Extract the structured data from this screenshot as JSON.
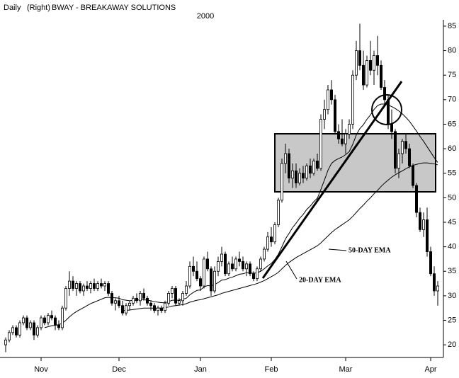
{
  "chart_data": {
    "type": "candlestick",
    "period": "Daily",
    "axis_side": "(Right)",
    "title": "BWAY - BREAKAWAY SOLUTIONS",
    "subtitle": "2000",
    "categories": [
      null,
      null,
      null,
      null,
      null,
      null,
      null,
      null,
      null,
      null,
      "Nov",
      null,
      null,
      null,
      null,
      null,
      null,
      null,
      null,
      null,
      null,
      null,
      null,
      null,
      null,
      null,
      null,
      null,
      null,
      null,
      null,
      null,
      "Dec",
      null,
      null,
      null,
      null,
      null,
      null,
      null,
      null,
      null,
      null,
      null,
      null,
      null,
      null,
      null,
      null,
      null,
      null,
      null,
      null,
      null,
      null,
      "Jan",
      null,
      null,
      null,
      null,
      null,
      null,
      null,
      null,
      null,
      null,
      null,
      null,
      null,
      null,
      null,
      null,
      null,
      null,
      null,
      "Feb",
      null,
      null,
      null,
      null,
      null,
      null,
      null,
      null,
      null,
      null,
      null,
      null,
      null,
      null,
      null,
      null,
      null,
      null,
      null,
      null,
      "Mar",
      null,
      null,
      null,
      null,
      null,
      null,
      null,
      null,
      null,
      null,
      null,
      null,
      null,
      null,
      null,
      null,
      null,
      null,
      null,
      null,
      null,
      null,
      null,
      "Apr",
      null,
      null
    ],
    "open": [
      20,
      21,
      22.5,
      23.5,
      22,
      24.5,
      25.5,
      23.5,
      24.5,
      22,
      23.5,
      25.5,
      24.5,
      26,
      25.5,
      24,
      23.5,
      27.5,
      31.5,
      33,
      31.5,
      32.5,
      31,
      32,
      31.5,
      32.5,
      31.5,
      32.5,
      32,
      32.5,
      30.5,
      28.5,
      29,
      28,
      26.5,
      28,
      28.5,
      29.5,
      29,
      30.5,
      29.5,
      28.5,
      28,
      27,
      27.5,
      27,
      28.5,
      30.5,
      31.5,
      28.5,
      29,
      30.5,
      32,
      36,
      35,
      33.5,
      32,
      37.5,
      35.5,
      31,
      35,
      37,
      38.5,
      34.5,
      36.5,
      35.5,
      37.5,
      37,
      35.5,
      36.5,
      34.5,
      33.5,
      35.5,
      37.5,
      39.5,
      42,
      41,
      44.5,
      49.5,
      57,
      59,
      54,
      55.5,
      53,
      55,
      54,
      56.5,
      55,
      57.5,
      56,
      66,
      68,
      72,
      70,
      63.5,
      62,
      61,
      63,
      65,
      75,
      80,
      77,
      73,
      78,
      76,
      79,
      77,
      72.5,
      70,
      65,
      63.5,
      56,
      59,
      61.5,
      60,
      56.5,
      52.5,
      47,
      43.5,
      45.5,
      39,
      34.5,
      31
    ],
    "high": [
      21.5,
      23,
      24,
      24,
      25,
      26,
      26,
      25,
      25,
      24,
      26,
      26,
      26.5,
      27,
      26,
      25,
      28,
      32,
      35,
      34,
      33,
      33,
      32.5,
      33,
      33,
      33.5,
      33,
      33.5,
      33,
      33,
      31,
      29.5,
      30,
      29,
      28.5,
      29,
      30,
      30.5,
      31,
      31.5,
      30,
      29,
      28.5,
      28,
      28,
      29,
      31,
      32,
      32,
      29.5,
      31,
      33,
      37,
      38,
      37,
      34,
      38,
      39,
      36,
      36,
      38,
      40,
      39,
      37,
      38,
      38,
      39,
      38,
      37,
      37,
      35,
      36,
      38,
      40,
      43,
      44,
      45,
      50,
      58,
      61,
      60,
      57,
      57,
      56,
      56.5,
      57,
      58,
      58,
      59,
      67,
      70,
      73,
      74,
      71,
      65,
      66,
      64,
      66,
      76,
      82,
      85.5,
      80,
      79,
      82,
      80,
      83,
      78,
      74,
      71,
      68,
      64,
      60,
      62,
      63,
      61,
      57,
      53,
      48,
      47,
      48,
      40,
      36,
      33
    ],
    "low": [
      18.5,
      20.5,
      22,
      21.5,
      21.5,
      24,
      23,
      23,
      21,
      21.5,
      23,
      24,
      24,
      25,
      23,
      23,
      23,
      27,
      30,
      31,
      30,
      30.5,
      30,
      31,
      30.5,
      31,
      31,
      31.5,
      31,
      30,
      28,
      27,
      27.5,
      26,
      26,
      27,
      28,
      28.5,
      28,
      29,
      28,
      27,
      26.5,
      26,
      26.5,
      26.5,
      28,
      29.5,
      28,
      28,
      28,
      30,
      31.5,
      34,
      33,
      31,
      31.5,
      35,
      30,
      30.5,
      34,
      36,
      34,
      34,
      35,
      35,
      36,
      35,
      34,
      34,
      33,
      33,
      35,
      37,
      39,
      40,
      40.5,
      44,
      49,
      55,
      53,
      52,
      52,
      52.5,
      53,
      53.5,
      54,
      54.5,
      55.5,
      55.5,
      64,
      67,
      69,
      63,
      61,
      60.5,
      59,
      62,
      64,
      74,
      76,
      72,
      72.5,
      75,
      73,
      75,
      72,
      69,
      64,
      62,
      55,
      54,
      57,
      59,
      56,
      52,
      46,
      43,
      42,
      38,
      34,
      30,
      28
    ],
    "close": [
      21,
      22.5,
      23.5,
      22,
      24.5,
      25.5,
      23.5,
      24.5,
      22,
      23.5,
      25.5,
      24.5,
      26,
      25.5,
      24,
      23.5,
      27.5,
      31.5,
      33,
      31.5,
      32.5,
      31,
      32,
      31.5,
      32.5,
      31.5,
      32.5,
      32,
      32.5,
      30.5,
      28.5,
      29,
      28,
      26.5,
      28,
      28.5,
      29.5,
      29,
      30.5,
      29.5,
      28.5,
      28,
      27,
      27.5,
      27,
      28.5,
      30.5,
      31.5,
      28.5,
      29,
      30.5,
      32,
      36,
      35,
      33.5,
      32,
      37.5,
      35.5,
      31,
      35,
      37,
      38.5,
      34.5,
      36.5,
      35.5,
      37.5,
      37,
      35.5,
      36.5,
      34.5,
      33.5,
      35.5,
      37.5,
      39.5,
      42,
      41,
      44.5,
      49.5,
      57,
      59,
      54,
      55.5,
      53,
      55,
      54,
      56.5,
      55,
      57.5,
      56,
      66,
      68,
      72,
      70,
      63.5,
      62,
      61,
      63,
      65,
      75,
      80,
      77,
      73,
      78,
      76,
      79,
      77,
      72.5,
      70,
      65,
      63.5,
      56,
      59,
      61.5,
      60,
      56.5,
      52.5,
      47,
      43.5,
      45.5,
      39,
      34.5,
      31,
      32
    ],
    "up_color": "#ffffff",
    "down_color": "#000000",
    "series": [
      {
        "name": "20-DAY EMA",
        "color": "#000000",
        "values": [
          null,
          null,
          null,
          null,
          null,
          null,
          null,
          null,
          null,
          null,
          null,
          23.5,
          23.7,
          23.9,
          24.0,
          24.1,
          24.4,
          25.0,
          25.7,
          26.3,
          26.8,
          27.2,
          27.6,
          28.0,
          28.4,
          28.7,
          29.0,
          29.3,
          29.6,
          29.7,
          29.6,
          29.6,
          29.5,
          29.2,
          29.1,
          29.0,
          29.1,
          29.1,
          29.2,
          29.2,
          29.1,
          29.0,
          28.8,
          28.7,
          28.6,
          28.6,
          28.8,
          29.1,
          29.1,
          29.1,
          29.3,
          29.5,
          30.2,
          30.7,
          31.1,
          31.2,
          31.8,
          32.1,
          32.0,
          32.3,
          32.7,
          33.2,
          33.3,
          33.6,
          33.8,
          34.1,
          34.4,
          34.5,
          34.7,
          34.7,
          34.6,
          34.7,
          35.0,
          35.5,
          36.1,
          36.6,
          37.4,
          38.5,
          40.0,
          41.6,
          42.7,
          43.9,
          44.8,
          45.8,
          46.6,
          47.6,
          48.3,
          49.2,
          49.9,
          51.7,
          53.6,
          55.6,
          57.0,
          57.6,
          58.0,
          58.3,
          58.8,
          59.4,
          60.9,
          62.8,
          64.1,
          64.9,
          66.0,
          66.9,
          68.0,
          68.8,
          69.1,
          69.1,
          68.9,
          68.6,
          68.2,
          67.7,
          67.1,
          66.4,
          65.6,
          64.6,
          63.6,
          62.5,
          61.5,
          60.4,
          59.3,
          58.2,
          57.2
        ]
      },
      {
        "name": "50-DAY EMA",
        "color": "#000000",
        "values": [
          null,
          null,
          null,
          null,
          null,
          null,
          null,
          null,
          null,
          null,
          null,
          null,
          null,
          null,
          null,
          null,
          null,
          null,
          null,
          null,
          null,
          null,
          null,
          null,
          null,
          null,
          null,
          null,
          null,
          null,
          null,
          null,
          null,
          27.0,
          27.0,
          27.1,
          27.2,
          27.3,
          27.4,
          27.5,
          27.5,
          27.5,
          27.5,
          27.5,
          27.5,
          27.6,
          27.7,
          27.9,
          28.0,
          28.1,
          28.2,
          28.4,
          28.7,
          28.9,
          29.1,
          29.2,
          29.4,
          29.6,
          29.8,
          30.0,
          30.2,
          30.5,
          30.7,
          30.9,
          31.1,
          31.3,
          31.5,
          31.7,
          31.9,
          32.1,
          32.3,
          32.5,
          32.8,
          33.1,
          33.5,
          33.9,
          34.3,
          34.8,
          35.5,
          36.2,
          36.8,
          37.3,
          37.8,
          38.2,
          38.6,
          39.0,
          39.4,
          39.8,
          40.2,
          40.8,
          41.5,
          42.2,
          42.9,
          43.5,
          44.0,
          44.5,
          45.0,
          45.5,
          46.2,
          47.0,
          47.8,
          48.5,
          49.3,
          50.0,
          50.8,
          51.5,
          52.3,
          53.0,
          53.6,
          54.2,
          54.7,
          55.1,
          55.5,
          55.9,
          56.3,
          56.6,
          56.8,
          57.0,
          57.1,
          57.1,
          57.0,
          56.9,
          56.7
        ]
      }
    ],
    "ylim": [
      18,
      86
    ],
    "yticks": [
      20,
      25,
      30,
      35,
      40,
      45,
      50,
      55,
      60,
      65,
      70,
      75,
      80,
      85
    ]
  }
}
